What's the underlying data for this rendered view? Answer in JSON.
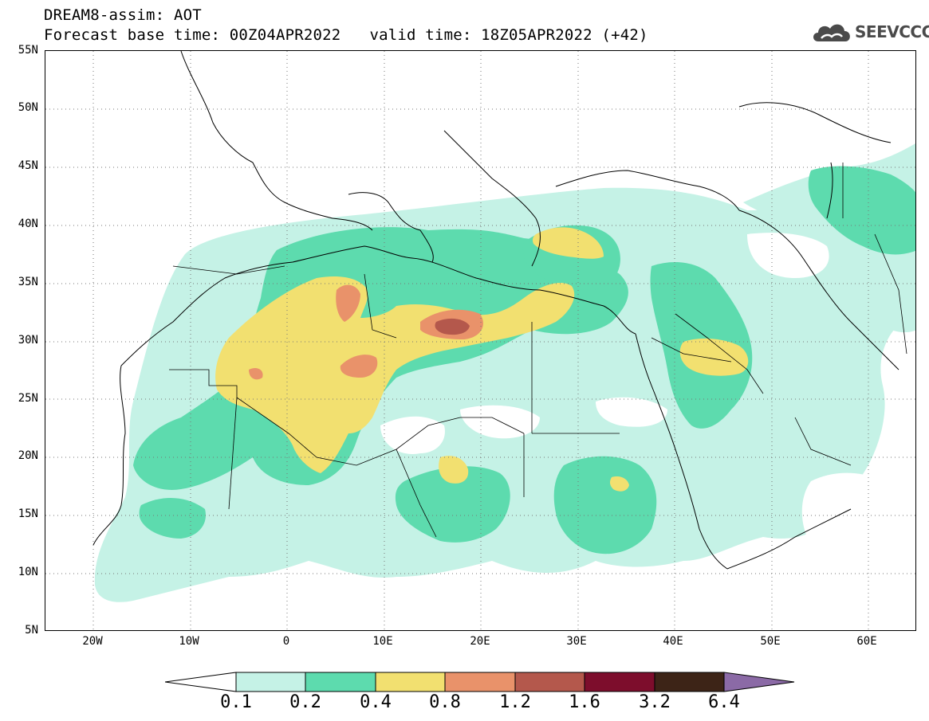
{
  "header": {
    "title": "DREAM8-assim: AOT",
    "base_time": "Forecast base time: 00Z04APR2022",
    "valid_time": "valid time: 18Z05APR2022 (+42)"
  },
  "logo": {
    "text": "SEEVCCC",
    "icon": "cloud-logo-icon",
    "color": "#4a4a4a"
  },
  "map": {
    "lon_range": [
      -25,
      65
    ],
    "lat_range": [
      5,
      55
    ],
    "lat_labels": [
      "55N",
      "50N",
      "45N",
      "40N",
      "35N",
      "30N",
      "25N",
      "20N",
      "15N",
      "10N",
      "5N"
    ],
    "lon_labels": [
      "20W",
      "10W",
      "0",
      "10E",
      "20E",
      "30E",
      "40E",
      "50E",
      "60E"
    ],
    "gridlines": "dotted"
  },
  "colorbar": {
    "levels": [
      "0.1",
      "0.2",
      "0.4",
      "0.8",
      "1.2",
      "1.6",
      "3.2",
      "6.4"
    ],
    "colors": [
      "#c5f2e6",
      "#5ddbae",
      "#f2e070",
      "#e9926a",
      "#b4584c",
      "#7d0d2c",
      "#3d2417",
      "#8b6aa6"
    ],
    "under_color": "#ffffff"
  }
}
